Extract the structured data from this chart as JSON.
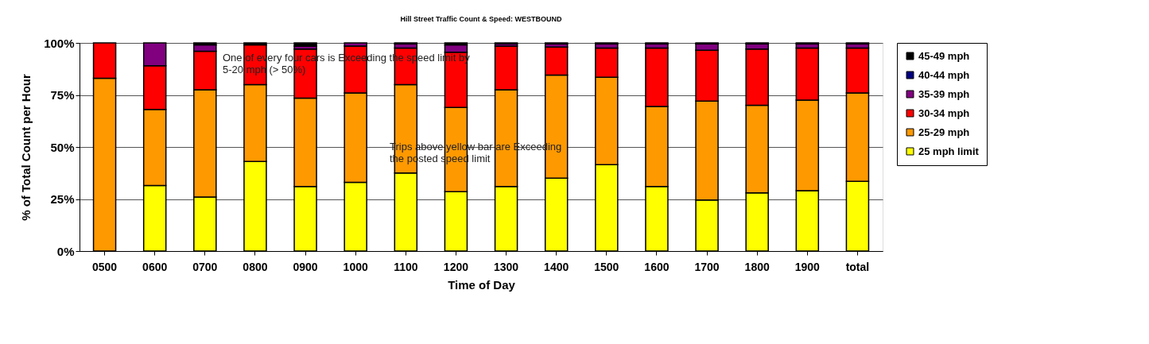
{
  "chart_data": {
    "type": "bar",
    "stacked": true,
    "title": "Hill Street Traffic Count & Speed: WESTBOUND",
    "xlabel": "Time of Day",
    "ylabel": "% of Total Count per Hour",
    "categories": [
      "0500",
      "0600",
      "0700",
      "0800",
      "0900",
      "1000",
      "1100",
      "1200",
      "1300",
      "1400",
      "1500",
      "1600",
      "1700",
      "1800",
      "1900",
      "total"
    ],
    "series": [
      {
        "name": "25 mph limit",
        "color": "#ffff00",
        "values": [
          0,
          31.5,
          26,
          43,
          31,
          33,
          37.5,
          28.5,
          31,
          35,
          41.5,
          31,
          24.5,
          28,
          29,
          33.5
        ]
      },
      {
        "name": "25-29 mph",
        "color": "#ff9900",
        "values": [
          83,
          36.5,
          51.5,
          37,
          42.5,
          43,
          42.5,
          40.5,
          46.5,
          49.5,
          42,
          38.5,
          47.5,
          42,
          43.5,
          42.5
        ]
      },
      {
        "name": "30-34 mph",
        "color": "#ff0000",
        "values": [
          17,
          21,
          18.5,
          19,
          23.5,
          22.5,
          17.5,
          26.5,
          21,
          13.5,
          14,
          28,
          24.5,
          27,
          25,
          21.5
        ]
      },
      {
        "name": "35-39 mph",
        "color": "#800080",
        "values": [
          0,
          11,
          3,
          0,
          1.5,
          1.5,
          2,
          3.5,
          1,
          1.5,
          2,
          2,
          3,
          2.5,
          2,
          2
        ]
      },
      {
        "name": "40-44 mph",
        "color": "#000080",
        "values": [
          0,
          0,
          0,
          0,
          0,
          0,
          0,
          0,
          0,
          0,
          0,
          0,
          0,
          0,
          0,
          0
        ]
      },
      {
        "name": "45-49 mph",
        "color": "#000000",
        "values": [
          0,
          0,
          1,
          1,
          1.5,
          0,
          0.5,
          1,
          0.5,
          0.5,
          0.5,
          0.5,
          0.5,
          0.5,
          0.5,
          0.5
        ]
      }
    ],
    "ylim": [
      0,
      100
    ],
    "yticks": [
      {
        "value": 0,
        "label": "0%"
      },
      {
        "value": 25,
        "label": "25%"
      },
      {
        "value": 50,
        "label": "50%"
      },
      {
        "value": 75,
        "label": "75%"
      },
      {
        "value": 100,
        "label": "100%"
      }
    ],
    "grid": "y",
    "legend": "right",
    "annotations": [
      "One of every four cars is Exceeding the speed limit by\n5-20 mph (> 50%)",
      "Trips above yellow bar are Exceeding\nthe posted speed limit"
    ]
  }
}
